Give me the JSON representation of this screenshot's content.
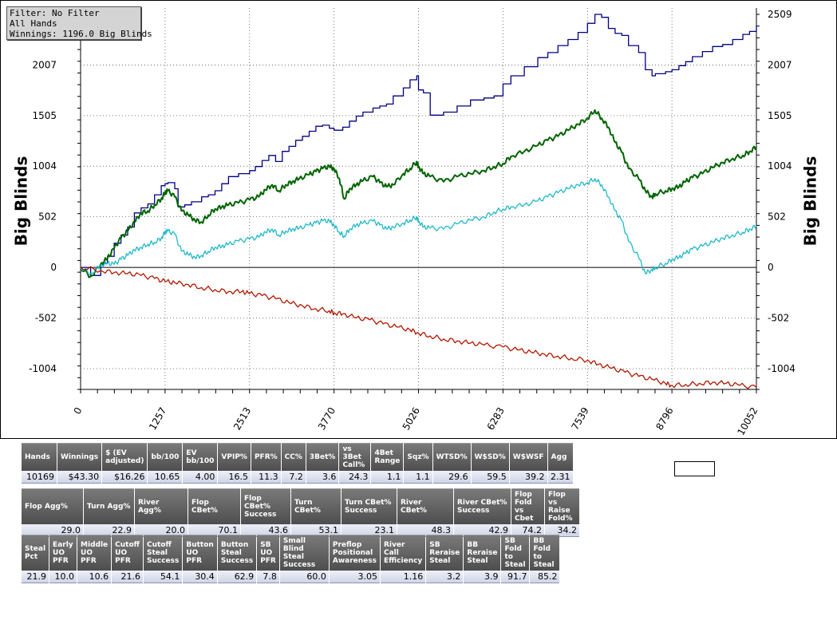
{
  "filter": {
    "line1": "Filter: No Filter",
    "line2": "All Hands",
    "line3": "Winnings: 1196.0 Big Blinds"
  },
  "chart_data": {
    "type": "line",
    "ylabel_left": "Big Blinds",
    "ylabel_right": "Big Blinds",
    "xlim": [
      0,
      10052
    ],
    "ylim": [
      -1210,
      2509
    ],
    "x_ticks": [
      "0",
      "1257",
      "2513",
      "3770",
      "5026",
      "6283",
      "7539",
      "8796",
      "10052"
    ],
    "y_ticks": [
      {
        "value": -1004,
        "label": "-1004"
      },
      {
        "value": -502,
        "label": "-502"
      },
      {
        "value": 0,
        "label": "0"
      },
      {
        "value": 502,
        "label": "502"
      },
      {
        "value": 1004,
        "label": "1004"
      },
      {
        "value": 1505,
        "label": "1505"
      },
      {
        "value": 2007,
        "label": "2007"
      }
    ],
    "y_top_label": "2509",
    "grid": true,
    "series": [
      {
        "color": "#000080",
        "step": true,
        "x": [
          0,
          150,
          300,
          400,
          500,
          600,
          700,
          800,
          900,
          1000,
          1100,
          1200,
          1257,
          1300,
          1400,
          1450,
          1550,
          1650,
          1800,
          1900,
          2000,
          2100,
          2200,
          2350,
          2513,
          2600,
          2700,
          2800,
          2900,
          3000,
          3100,
          3200,
          3300,
          3400,
          3500,
          3600,
          3700,
          3770,
          3900,
          4000,
          4100,
          4200,
          4350,
          4450,
          4550,
          4650,
          4800,
          4900,
          5000,
          5026,
          5100,
          5200,
          5400,
          5600,
          5800,
          6000,
          6150,
          6283,
          6400,
          6600,
          6800,
          6950,
          7100,
          7250,
          7400,
          7539,
          7650,
          7750,
          7850,
          7950,
          8050,
          8150,
          8300,
          8400,
          8500,
          8550,
          8700,
          8796,
          8900,
          9000,
          9100,
          9250,
          9400,
          9550,
          9700,
          9850,
          9950,
          10052
        ],
        "y": [
          0,
          -80,
          40,
          110,
          240,
          320,
          400,
          540,
          590,
          630,
          720,
          810,
          830,
          840,
          780,
          600,
          620,
          650,
          700,
          720,
          760,
          830,
          900,
          930,
          960,
          1000,
          1060,
          1110,
          1050,
          1150,
          1200,
          1260,
          1300,
          1350,
          1400,
          1410,
          1380,
          1360,
          1390,
          1450,
          1500,
          1540,
          1580,
          1600,
          1620,
          1700,
          1780,
          1860,
          1900,
          1760,
          1730,
          1510,
          1540,
          1600,
          1660,
          1680,
          1700,
          1820,
          1900,
          1990,
          2080,
          2130,
          2200,
          2260,
          2330,
          2420,
          2509,
          2480,
          2370,
          2320,
          2300,
          2200,
          2130,
          1960,
          1900,
          1920,
          1940,
          1960,
          2000,
          2040,
          2090,
          2140,
          2190,
          2210,
          2260,
          2310,
          2340,
          2400
        ]
      },
      {
        "color": "#006400",
        "step": false,
        "x": [
          0,
          150,
          300,
          400,
          500,
          600,
          700,
          800,
          900,
          1000,
          1100,
          1200,
          1257,
          1300,
          1400,
          1500,
          1600,
          1700,
          1800,
          1900,
          2000,
          2100,
          2200,
          2350,
          2513,
          2650,
          2750,
          2850,
          2950,
          3050,
          3150,
          3250,
          3400,
          3500,
          3600,
          3700,
          3770,
          3850,
          3920,
          4000,
          4100,
          4200,
          4350,
          4450,
          4550,
          4650,
          4800,
          4900,
          5000,
          5026,
          5100,
          5200,
          5400,
          5600,
          5800,
          6000,
          6150,
          6283,
          6400,
          6600,
          6800,
          6950,
          7100,
          7250,
          7400,
          7539,
          7650,
          7750,
          7850,
          7950,
          8050,
          8150,
          8300,
          8400,
          8500,
          8550,
          8700,
          8796,
          8900,
          9000,
          9100,
          9250,
          9400,
          9550,
          9700,
          9850,
          9950,
          10052
        ],
        "y": [
          0,
          -90,
          30,
          90,
          190,
          290,
          360,
          450,
          540,
          560,
          620,
          680,
          740,
          760,
          700,
          560,
          520,
          470,
          450,
          520,
          580,
          600,
          620,
          640,
          670,
          700,
          770,
          820,
          760,
          820,
          850,
          880,
          920,
          950,
          980,
          1000,
          980,
          880,
          680,
          780,
          820,
          860,
          900,
          840,
          800,
          820,
          930,
          980,
          1050,
          1000,
          930,
          900,
          850,
          900,
          930,
          960,
          1000,
          1030,
          1100,
          1150,
          1210,
          1260,
          1300,
          1360,
          1420,
          1480,
          1560,
          1480,
          1390,
          1240,
          1140,
          980,
          880,
          760,
          700,
          730,
          760,
          780,
          800,
          850,
          890,
          930,
          990,
          1040,
          1080,
          1110,
          1150,
          1196
        ]
      },
      {
        "color": "#20B8C8",
        "step": false,
        "x": [
          0,
          150,
          300,
          400,
          500,
          600,
          700,
          800,
          900,
          1000,
          1100,
          1200,
          1257,
          1300,
          1400,
          1500,
          1600,
          1700,
          1800,
          1900,
          2000,
          2100,
          2200,
          2350,
          2513,
          2650,
          2750,
          2850,
          2950,
          3050,
          3150,
          3250,
          3400,
          3500,
          3600,
          3700,
          3770,
          3850,
          3920,
          4000,
          4100,
          4200,
          4350,
          4450,
          4550,
          4650,
          4800,
          4900,
          5000,
          5026,
          5100,
          5200,
          5400,
          5600,
          5800,
          6000,
          6150,
          6283,
          6400,
          6600,
          6800,
          6950,
          7100,
          7250,
          7400,
          7539,
          7650,
          7750,
          7850,
          7950,
          8050,
          8150,
          8300,
          8400,
          8500,
          8550,
          8700,
          8796,
          8900,
          9000,
          9100,
          9250,
          9400,
          9550,
          9700,
          9850,
          9950,
          10052
        ],
        "y": [
          0,
          -60,
          20,
          40,
          30,
          80,
          120,
          170,
          200,
          230,
          250,
          290,
          350,
          360,
          330,
          160,
          130,
          100,
          120,
          160,
          200,
          210,
          230,
          260,
          280,
          300,
          350,
          380,
          320,
          360,
          380,
          390,
          420,
          440,
          460,
          460,
          420,
          350,
          310,
          380,
          420,
          440,
          460,
          420,
          380,
          400,
          440,
          470,
          500,
          460,
          400,
          390,
          380,
          430,
          470,
          500,
          550,
          580,
          600,
          620,
          660,
          700,
          740,
          780,
          820,
          840,
          880,
          820,
          700,
          560,
          460,
          260,
          100,
          -60,
          -20,
          0,
          40,
          80,
          100,
          140,
          180,
          210,
          250,
          290,
          320,
          350,
          380,
          410
        ]
      },
      {
        "color": "#B01800",
        "step": false,
        "x": [
          0,
          300,
          500,
          700,
          900,
          1100,
          1257,
          1400,
          1600,
          1800,
          2000,
          2200,
          2400,
          2513,
          2700,
          2900,
          3100,
          3300,
          3500,
          3700,
          3770,
          3900,
          4100,
          4300,
          4500,
          4700,
          4900,
          5026,
          5200,
          5400,
          5600,
          5800,
          6000,
          6283,
          6500,
          6700,
          6900,
          7100,
          7300,
          7539,
          7700,
          7900,
          8100,
          8300,
          8500,
          8700,
          8796,
          9000,
          9200,
          9400,
          9600,
          9800,
          10052
        ],
        "y": [
          0,
          -30,
          -50,
          -60,
          -80,
          -110,
          -140,
          -150,
          -170,
          -200,
          -220,
          -240,
          -240,
          -260,
          -280,
          -310,
          -350,
          -380,
          -410,
          -430,
          -450,
          -460,
          -500,
          -520,
          -560,
          -590,
          -620,
          -650,
          -680,
          -710,
          -730,
          -750,
          -770,
          -790,
          -820,
          -840,
          -860,
          -880,
          -900,
          -920,
          -960,
          -1000,
          -1040,
          -1080,
          -1110,
          -1150,
          -1170,
          -1160,
          -1150,
          -1140,
          -1150,
          -1170,
          -1190
        ]
      }
    ]
  },
  "table1": {
    "headers": [
      "Hands",
      "Winnings",
      "$ (EV adjusted)",
      "bb/100",
      "EV bb/100",
      "VPIP%",
      "PFR%",
      "CC%",
      "3Bet%",
      "vs 3Bet Call%",
      "4Bet Range",
      "Sqz%",
      "WTSD%",
      "W$SD%",
      "W$WSF",
      "Agg"
    ],
    "values": [
      "10169",
      "$43.30",
      "$16.26",
      "10.65",
      "4.00",
      "16.5",
      "11.3",
      "7.2",
      "3.6",
      "24.3",
      "1.1",
      "1.1",
      "29.6",
      "59.5",
      "39.2",
      "2.31"
    ]
  },
  "table2": {
    "headers": [
      "Flop Agg%",
      "Turn Agg%",
      "River Agg%",
      "Flop CBet%",
      "Flop CBet% Success",
      "Turn CBet%",
      "Turn CBet% Success",
      "River CBet%",
      "River CBet% Success",
      "Flop Fold vs Cbet",
      "Flop vs Raise Fold%"
    ],
    "values": [
      "29.0",
      "22.9",
      "20.0",
      "70.1",
      "43.6",
      "53.1",
      "23.1",
      "48.3",
      "42.9",
      "74.2",
      "34.2"
    ]
  },
  "table3": {
    "headers": [
      "Steal Pct",
      "Early UO PFR",
      "Middle UO PFR",
      "Cutoff UO PFR",
      "Cutoff Steal Success",
      "Button UO PFR",
      "Button Steal Success",
      "SB UO PFR",
      "Small Blind Steal Success",
      "Preflop Positional Awareness",
      "River Call Efficiency",
      "SB Reraise Steal",
      "BB Reraise Steal",
      "SB Fold to Steal",
      "BB Fold to Steal"
    ],
    "values": [
      "21.9",
      "10.0",
      "10.6",
      "21.6",
      "54.1",
      "30.4",
      "62.9",
      "7.8",
      "60.0",
      "3.05",
      "1.16",
      "3.2",
      "3.9",
      "91.7",
      "85.2"
    ]
  }
}
